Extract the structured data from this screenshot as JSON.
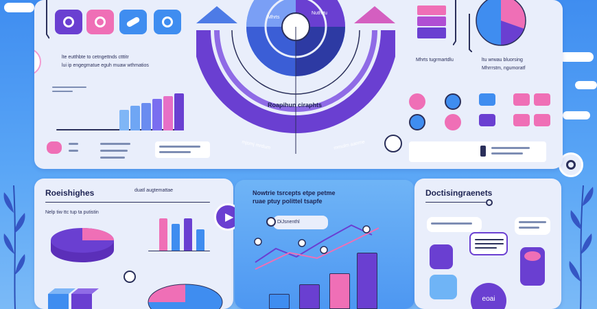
{
  "header": {
    "top_left_heading_1": "lte eutthbte to cetngettnds ctttitr",
    "top_left_heading_2": "lui ip engegmatue eguh muaw wthmatios"
  },
  "center_dial": {
    "label_a": "Mhrts",
    "label_b": "Nuthrtu",
    "caption": "Roapihun ciraphts",
    "arc_label_left": "mjomj mrdum",
    "arc_label_right": "mmulm aanme"
  },
  "top_right": {
    "note_1": "Mhrts tugrmartdlu",
    "note_2": "ltu wrwau bluorsing",
    "note_3": "Mhrrrstm, ngumoratf"
  },
  "left_panel": {
    "title": "Roeishighes",
    "subtitle": "duatl augtemattae",
    "desc": "Nelp tiw ttc tup ta putistin"
  },
  "center_panel": {
    "title_1": "Nowtrie tsrcepts etpe petme",
    "title_2": "ruae ptuy polittel tsapfe",
    "callout": "DiJsnenthl"
  },
  "right_panel": {
    "title": "Doctisingraenets"
  },
  "buttons": {
    "play": "▶",
    "badge_odd": "eoai"
  },
  "icons": {
    "lightbulb": "lightbulb-icon",
    "play": "play-icon",
    "target": "target-icon"
  },
  "colors": {
    "purple": "#6a3fd1",
    "pink": "#ef6fb6",
    "blue": "#3f8df0",
    "light": "#e9eefb"
  }
}
